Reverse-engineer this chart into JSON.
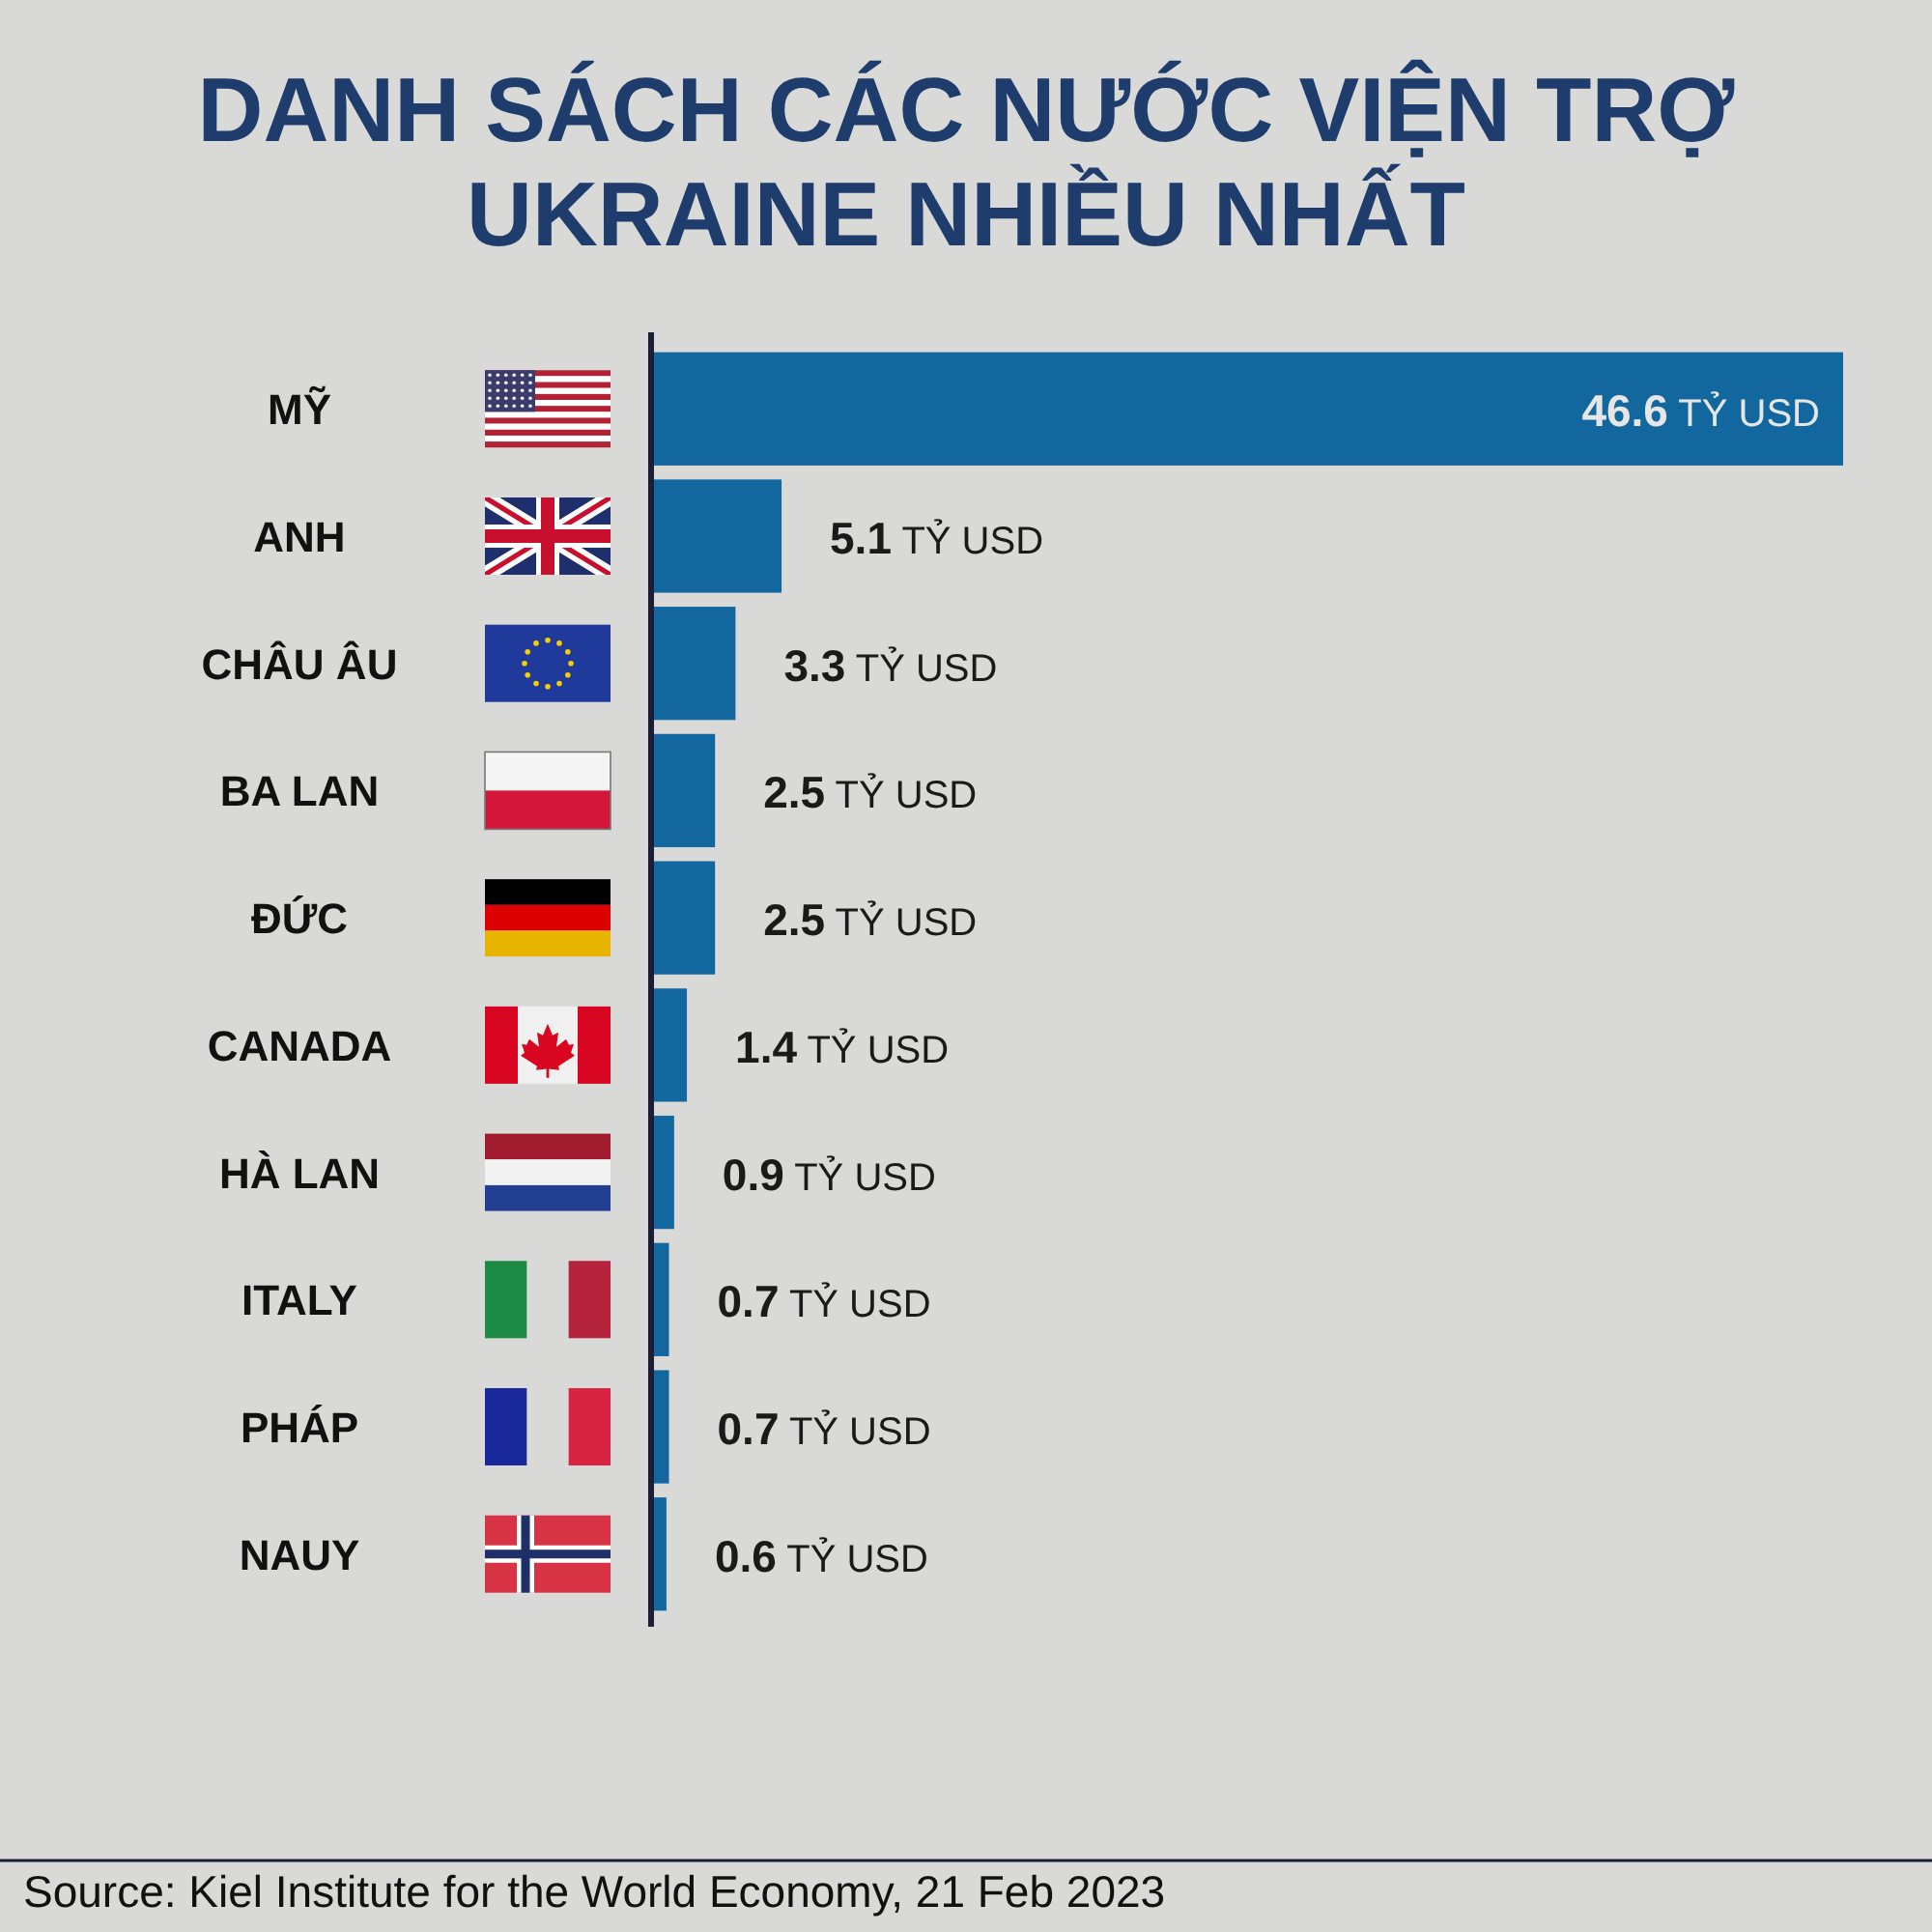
{
  "chart_data": {
    "type": "bar",
    "orientation": "horizontal",
    "title": "DANH SÁCH CÁC NƯỚC VIỆN TRỢ\nUKRAINE NHIỀU NHẤT",
    "categories": [
      "MỸ",
      "ANH",
      "CHÂU ÂU",
      "BA LAN",
      "ĐỨC",
      "CANADA",
      "HÀ LAN",
      "ITALY",
      "PHÁP",
      "NAUY"
    ],
    "values": [
      46.6,
      5.1,
      3.3,
      2.5,
      2.5,
      1.4,
      0.9,
      0.7,
      0.7,
      0.6
    ],
    "color": "#12679f",
    "value_labels": [
      "46.6 TỶ USD",
      "5.1 TỶ USD",
      "3.3 TỶ USD",
      "2.5 TỶ USD",
      "2.5 TỶ USD",
      "1.4 TỶ USD",
      "0.9 TỶ USD",
      "0.7 TỶ USD",
      "0.7 TỶ USD",
      "0.6 TỶ USD"
    ],
    "tick_labels": "y",
    "annotations": [
      "Source: Kiel Institute for the World Economy, 21 Feb 2023"
    ]
  }
}
